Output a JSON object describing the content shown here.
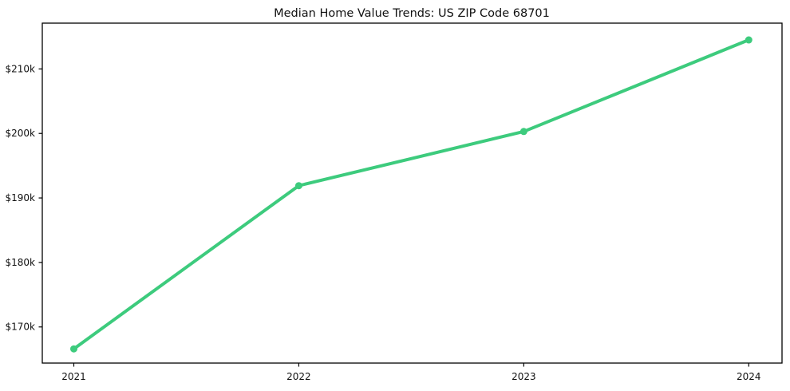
{
  "title": "Median Home Value Trends: US ZIP Code 68701",
  "colors": {
    "line": "#3dcb7d",
    "axis": "#000000",
    "text": "#111111",
    "background": "#ffffff"
  },
  "chart_data": {
    "type": "line",
    "title": "Median Home Value Trends: US ZIP Code 68701",
    "x": [
      2021,
      2022,
      2023,
      2024
    ],
    "x_tick_labels": [
      "2021",
      "2022",
      "2023",
      "2024"
    ],
    "values": [
      166600,
      191900,
      200300,
      214500
    ],
    "y_tick_values": [
      170000,
      180000,
      190000,
      200000,
      210000
    ],
    "y_tick_labels": [
      "$170k",
      "$180k",
      "$190k",
      "$200k",
      "$210k"
    ],
    "xlabel": "",
    "ylabel": "",
    "xlim": [
      2020.86,
      2024.15
    ],
    "ylim": [
      164400,
      217100
    ],
    "grid": false,
    "frame": true,
    "legend": "none",
    "marker": "circle",
    "line_color": "#3dcb7d",
    "line_width": 4,
    "marker_radius": 4.5
  }
}
